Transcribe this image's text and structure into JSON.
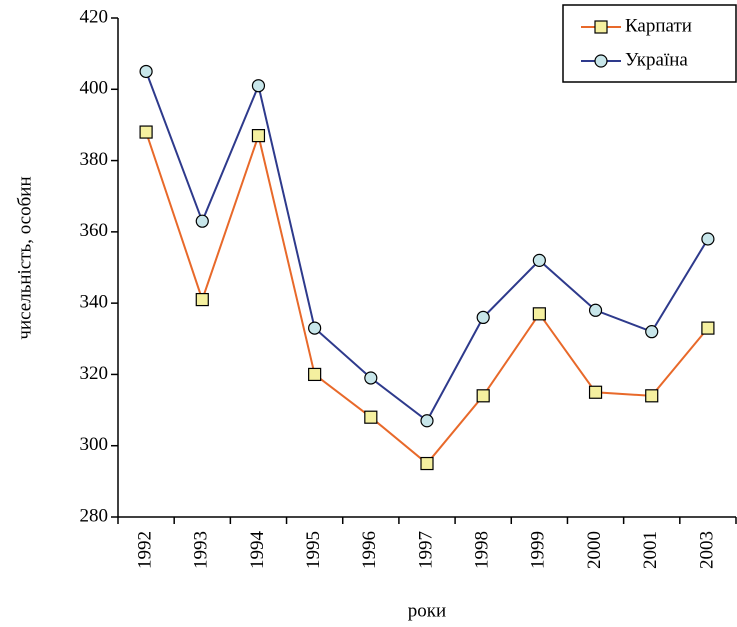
{
  "chart_data": {
    "type": "line",
    "x_label": "роки",
    "y_label": "чисельність, особин",
    "categories": [
      "1992",
      "1993",
      "1994",
      "1995",
      "1996",
      "1997",
      "1998",
      "1999",
      "2000",
      "2001",
      "2003"
    ],
    "series": [
      {
        "name": "Карпати",
        "color": "#e8692a",
        "marker": "square",
        "marker_color": "#f5f0a0",
        "values": [
          388,
          341,
          387,
          320,
          308,
          295,
          314,
          337,
          315,
          314,
          333
        ]
      },
      {
        "name": "Україна",
        "color": "#2e3a8c",
        "marker": "circle",
        "marker_color": "#c8e6ea",
        "values": [
          405,
          363,
          401,
          333,
          319,
          307,
          336,
          352,
          338,
          332,
          358
        ]
      }
    ],
    "ylim": [
      280,
      420
    ],
    "yticks": [
      280,
      300,
      320,
      340,
      360,
      380,
      400,
      420
    ],
    "grid": false,
    "legend": "upper right"
  }
}
